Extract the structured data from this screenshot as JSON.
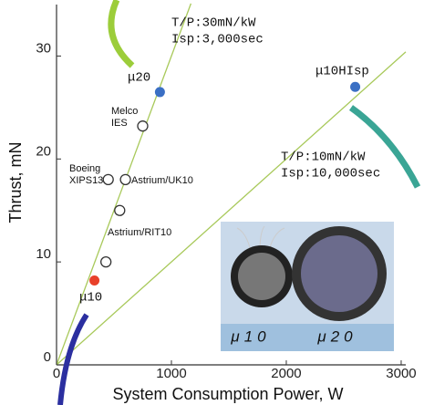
{
  "chart_data": {
    "type": "scatter",
    "xlabel": "System Consumption Power, W",
    "ylabel": "Thrust, mN",
    "xlim": [
      0,
      3040
    ],
    "ylim": [
      0,
      35
    ],
    "xticks": [
      0,
      1000,
      2000,
      3000
    ],
    "yticks": [
      0,
      10,
      20,
      30
    ],
    "points": [
      {
        "label": [
          "μ20"
        ],
        "x": 900,
        "y": 26.5,
        "color": "#3a6fc4",
        "filled": true
      },
      {
        "label": [
          "μ10HIsp"
        ],
        "x": 2600,
        "y": 27,
        "color": "#3a6fc4",
        "filled": true
      },
      {
        "label": [
          "Melco",
          "IES"
        ],
        "x": 750,
        "y": 23.2,
        "color": "#333333",
        "filled": false
      },
      {
        "label": [
          "Astrium/UK10"
        ],
        "x": 600,
        "y": 18,
        "color": "#333333",
        "filled": false
      },
      {
        "label": [
          "Boeing",
          "XIPS13"
        ],
        "x": 450,
        "y": 18,
        "color": "#333333",
        "filled": false
      },
      {
        "label": [
          "Astrium/RIT10"
        ],
        "x": 550,
        "y": 15,
        "color": "#333333",
        "filled": false
      },
      {
        "label": null,
        "x": 430,
        "y": 10,
        "color": "#333333",
        "filled": false
      },
      {
        "label": [
          "μ10"
        ],
        "x": 330,
        "y": 8.2,
        "color": "#e8402a",
        "filled": true
      }
    ],
    "lines": [
      {
        "label": [
          "T/P:30mN/kW",
          "Isp:3,000sec"
        ],
        "x": [
          0,
          1170
        ],
        "values": [
          0,
          35.1
        ],
        "color": "#a8c95a"
      },
      {
        "label": [
          "T/P:10mN/kW",
          "Isp:10,000sec"
        ],
        "x": [
          0,
          3040
        ],
        "values": [
          0,
          30.4
        ],
        "color": "#a8c95a"
      }
    ],
    "inset": {
      "labels": [
        "μ10",
        "μ20"
      ]
    }
  }
}
